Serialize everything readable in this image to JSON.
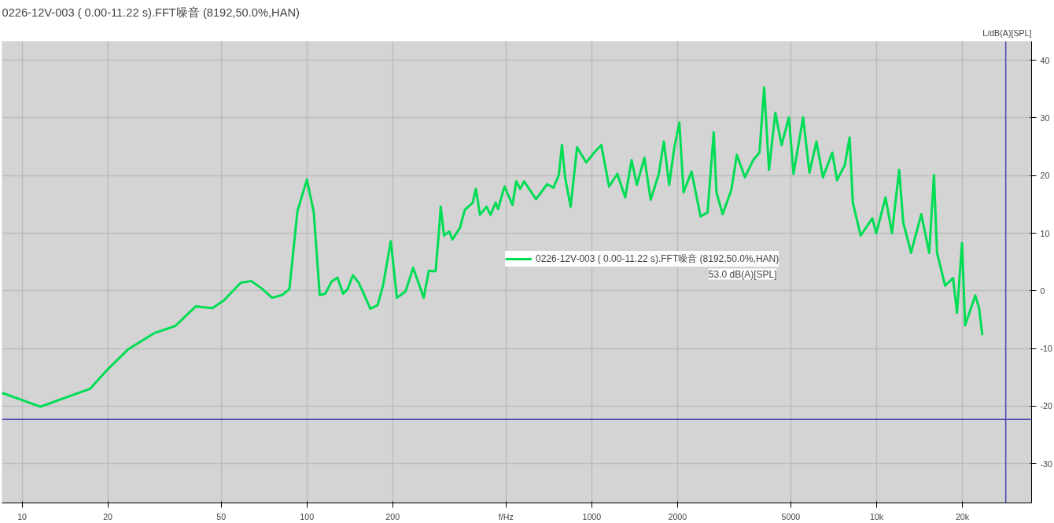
{
  "chart_data": {
    "type": "line",
    "title": "0226-12V-003 ( 0.00-11.22 s).FFT噪音 (8192,50.0%,HAN)",
    "xlabel": "f/Hz",
    "ylabel": "L/dB(A)[SPL]",
    "log": "x",
    "grid": true,
    "legend": "center",
    "line_style": "solid",
    "marker": "none",
    "xlim": [
      8.5,
      35000
    ],
    "ylim": [
      -36.8,
      43.3
    ],
    "xticks": [
      10,
      20,
      50,
      100,
      200,
      {
        "value": 500,
        "label": null
      },
      1000,
      2000,
      5000,
      {
        "value": 10000,
        "label": "10k"
      },
      {
        "value": 20000,
        "label": "20k"
      }
    ],
    "yticks": [
      -30,
      -20,
      -10,
      0,
      10,
      20,
      30,
      40
    ],
    "ref_lines": [
      {
        "axis": "y",
        "value": -22.3,
        "label": null,
        "color": "#4848b0"
      },
      {
        "axis": "x",
        "value": 28400,
        "label": null,
        "color": "#4848b0"
      }
    ],
    "annotations": [
      "53.0 dB(A)[SPL]"
    ],
    "series": [
      {
        "name": "0226-12V-003 ( 0.00-11.22 s).FFT噪音 (8192,50.0%,HAN)",
        "color": "#00dd55",
        "x": [
          8.5,
          11.6,
          17.3,
          20,
          23.5,
          29.2,
          34.5,
          40.7,
          46.6,
          51,
          58.6,
          63.8,
          69.4,
          75.5,
          82,
          86.8,
          92.6,
          100,
          105.7,
          110.9,
          116,
          122,
          128,
          134,
          139,
          145,
          152,
          157,
          167,
          177,
          185,
          197,
          207,
          222,
          236,
          257,
          268,
          283,
          290,
          295,
          303,
          316,
          324,
          345,
          358,
          382,
          392,
          405,
          427,
          441,
          460,
          469,
          494,
          527,
          543,
          561,
          579,
          637,
          697,
          734,
          766,
          786,
          806,
          843,
          888,
          934,
          957,
          1020,
          1080,
          1150,
          1230,
          1310,
          1380,
          1440,
          1530,
          1610,
          1720,
          1790,
          1870,
          1950,
          2030,
          2100,
          2240,
          2410,
          2550,
          2680,
          2740,
          2880,
          3090,
          3230,
          3450,
          3690,
          3880,
          4030,
          4190,
          4410,
          4640,
          4920,
          5110,
          5520,
          5810,
          6150,
          6480,
          6990,
          7260,
          7730,
          8040,
          8250,
          8790,
          9660,
          9970,
          10750,
          11320,
          12000,
          12400,
          13210,
          14350,
          15300,
          15900,
          16300,
          17400,
          18550,
          19150,
          19950,
          20450,
          22200,
          22900,
          23500
        ],
        "values": [
          -17.7,
          -20.1,
          -17.0,
          -13.6,
          -10.2,
          -7.3,
          -6.1,
          -2.7,
          -3.0,
          -1.7,
          1.4,
          1.7,
          0.4,
          -1.2,
          -0.7,
          0.3,
          13.8,
          19.3,
          13.6,
          -0.7,
          -0.5,
          1.6,
          2.3,
          -0.5,
          0.3,
          2.7,
          1.4,
          -0.1,
          -3.1,
          -2.5,
          0.9,
          8.6,
          -1.2,
          -0.1,
          4.0,
          -1.2,
          3.5,
          3.4,
          9.6,
          14.6,
          9.6,
          10.3,
          8.9,
          11.0,
          14.0,
          15.3,
          17.7,
          13.2,
          14.6,
          13.2,
          15.3,
          14.2,
          18.1,
          14.9,
          19.0,
          17.7,
          19.0,
          15.9,
          18.5,
          17.9,
          20.1,
          25.3,
          19.7,
          14.6,
          24.9,
          23.1,
          22.3,
          24.0,
          25.3,
          18.1,
          20.3,
          16.2,
          22.7,
          18.4,
          23.1,
          15.8,
          20.3,
          25.9,
          18.4,
          24.9,
          29.2,
          17.1,
          20.7,
          12.9,
          13.6,
          27.5,
          17.1,
          13.3,
          17.5,
          23.6,
          19.7,
          22.7,
          24.0,
          35.3,
          21.0,
          30.9,
          25.3,
          30.1,
          20.3,
          30.1,
          20.5,
          25.9,
          19.7,
          24.0,
          19.2,
          21.8,
          26.6,
          15.3,
          9.6,
          12.6,
          10.0,
          16.2,
          10.0,
          21.0,
          11.9,
          6.6,
          13.3,
          6.6,
          20.1,
          6.6,
          0.9,
          2.2,
          -3.8,
          8.3,
          -6.0,
          -0.8,
          -3.0,
          -7.7
        ]
      }
    ]
  }
}
